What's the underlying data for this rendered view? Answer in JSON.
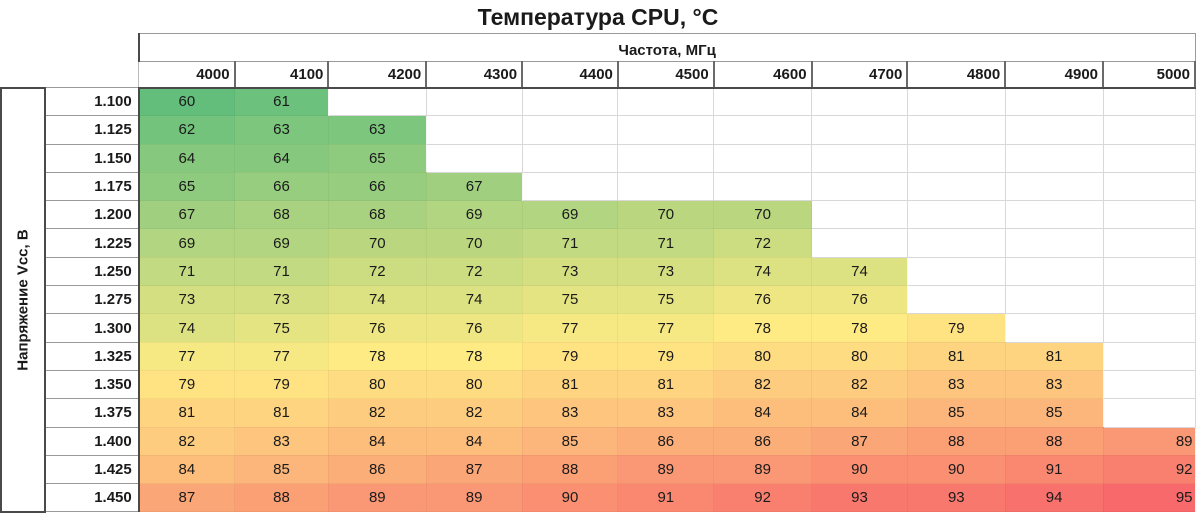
{
  "chart_data": {
    "type": "heatmap",
    "title": "Температура CPU, °C",
    "xlabel": "Частота, МГц",
    "ylabel": "Напряжение Vcc, В",
    "x": [
      "4000",
      "4100",
      "4200",
      "4300",
      "4400",
      "4500",
      "4600",
      "4700",
      "4800",
      "4900",
      "5000"
    ],
    "y": [
      "1.100",
      "1.125",
      "1.150",
      "1.175",
      "1.200",
      "1.225",
      "1.250",
      "1.275",
      "1.300",
      "1.325",
      "1.350",
      "1.375",
      "1.400",
      "1.425",
      "1.450"
    ],
    "values": [
      [
        60,
        61,
        null,
        null,
        null,
        null,
        null,
        null,
        null,
        null,
        null
      ],
      [
        62,
        63,
        63,
        null,
        null,
        null,
        null,
        null,
        null,
        null,
        null
      ],
      [
        64,
        64,
        65,
        null,
        null,
        null,
        null,
        null,
        null,
        null,
        null
      ],
      [
        65,
        66,
        66,
        67,
        null,
        null,
        null,
        null,
        null,
        null,
        null
      ],
      [
        67,
        68,
        68,
        69,
        69,
        70,
        70,
        null,
        null,
        null,
        null
      ],
      [
        69,
        69,
        70,
        70,
        71,
        71,
        72,
        null,
        null,
        null,
        null
      ],
      [
        71,
        71,
        72,
        72,
        73,
        73,
        74,
        74,
        null,
        null,
        null
      ],
      [
        73,
        73,
        74,
        74,
        75,
        75,
        76,
        76,
        null,
        null,
        null
      ],
      [
        74,
        75,
        76,
        76,
        77,
        77,
        78,
        78,
        79,
        null,
        null
      ],
      [
        77,
        77,
        78,
        78,
        79,
        79,
        80,
        80,
        81,
        81,
        null
      ],
      [
        79,
        79,
        80,
        80,
        81,
        81,
        82,
        82,
        83,
        83,
        null
      ],
      [
        81,
        81,
        82,
        82,
        83,
        83,
        84,
        84,
        85,
        85,
        null
      ],
      [
        82,
        83,
        84,
        84,
        85,
        86,
        86,
        87,
        88,
        88,
        89
      ],
      [
        84,
        85,
        86,
        87,
        88,
        89,
        89,
        90,
        90,
        91,
        92
      ],
      [
        87,
        88,
        89,
        89,
        90,
        91,
        92,
        93,
        93,
        94,
        95
      ]
    ],
    "color_scale": {
      "low": "#63be7b",
      "mid": "#ffeb84",
      "high": "#f8696b",
      "min": 60,
      "mid_value": 78,
      "max": 95
    }
  }
}
